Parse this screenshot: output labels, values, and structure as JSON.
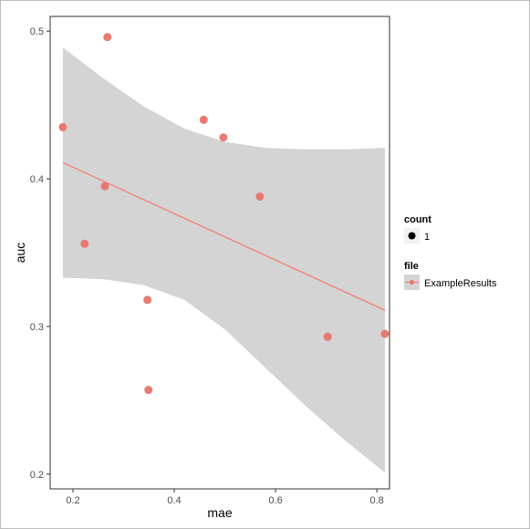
{
  "chart_data": {
    "type": "scatter",
    "xlabel": "mae",
    "ylabel": "auc",
    "xlim": [
      0.155,
      0.825
    ],
    "ylim": [
      0.19,
      0.51
    ],
    "x_ticks": [
      0.2,
      0.4,
      0.6,
      0.8
    ],
    "x_tick_labels": [
      "0.2",
      "0.4",
      "0.6",
      "0.8"
    ],
    "y_ticks": [
      0.2,
      0.3,
      0.4,
      0.5
    ],
    "y_tick_labels": [
      "0.2",
      "0.3",
      "0.4",
      "0.5"
    ],
    "grid": false,
    "points": {
      "x": [
        0.18,
        0.223,
        0.263,
        0.268,
        0.347,
        0.349,
        0.458,
        0.497,
        0.569,
        0.703,
        0.816
      ],
      "y": [
        0.435,
        0.356,
        0.395,
        0.496,
        0.318,
        0.257,
        0.44,
        0.428,
        0.388,
        0.293,
        0.295
      ]
    },
    "fit_line": {
      "x": [
        0.18,
        0.816
      ],
      "y": [
        0.411,
        0.311
      ]
    },
    "confidence_band": {
      "x": [
        0.18,
        0.26,
        0.34,
        0.42,
        0.5,
        0.58,
        0.66,
        0.74,
        0.816
      ],
      "upper": [
        0.489,
        0.468,
        0.449,
        0.434,
        0.425,
        0.421,
        0.42,
        0.42,
        0.421
      ],
      "lower": [
        0.333,
        0.332,
        0.328,
        0.318,
        0.298,
        0.272,
        0.246,
        0.222,
        0.201
      ]
    },
    "colors": {
      "point": "#e8736a",
      "line": "#f8766d",
      "band": "#d4d4d4",
      "panel_border": "#333333"
    },
    "legend": {
      "position": "right",
      "groups": [
        {
          "title": "count",
          "entries": [
            {
              "label": "1",
              "key": "dot-black"
            }
          ]
        },
        {
          "title": "file",
          "entries": [
            {
              "label": "ExampleResults",
              "key": "line-point"
            }
          ]
        }
      ]
    }
  }
}
